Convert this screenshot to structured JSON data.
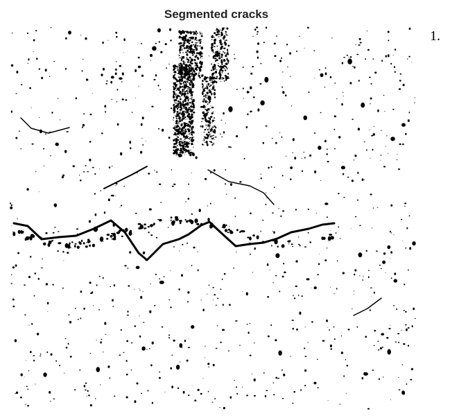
{
  "figure": {
    "title": "Segmented cracks",
    "marker": "1."
  }
}
